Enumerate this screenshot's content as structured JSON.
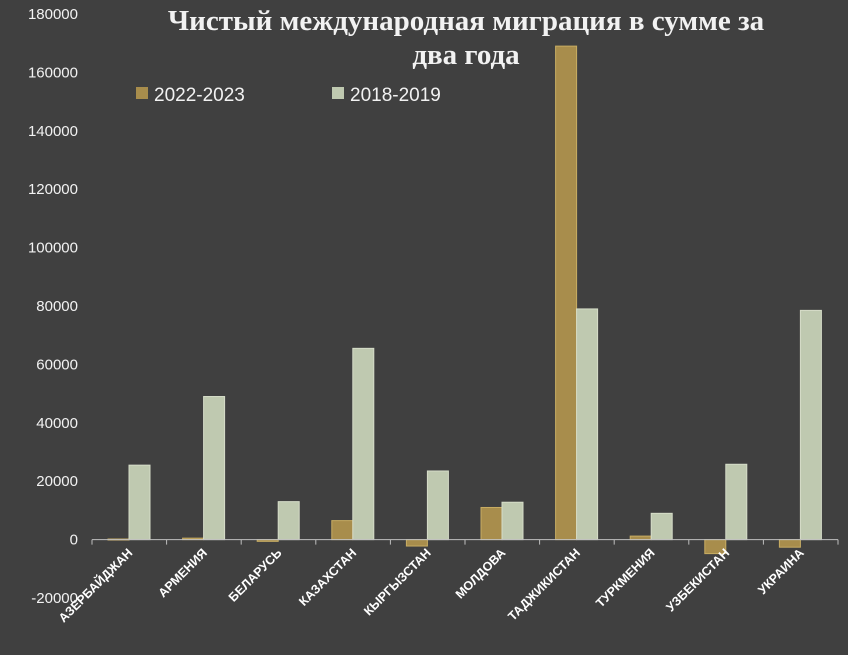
{
  "chart_data": {
    "type": "bar",
    "title_lines": [
      "Чистый международная миграция в сумме за",
      "два года"
    ],
    "categories": [
      "АЗЕРБАЙДЖАН",
      "АРМЕНИЯ",
      "БЕЛАРУСЬ",
      "КАЗАХСТАН",
      "КЫРГЫЗСТАН",
      "МОЛДОВА",
      "ТАДЖИКИСТАН",
      "ТУРКМЕНИЯ",
      "УЗБЕКИСТАН",
      "УКРАИНА"
    ],
    "series": [
      {
        "name": "2022-2023",
        "color": "#a88d4c",
        "values": [
          200,
          500,
          -600,
          6500,
          -2200,
          11000,
          169000,
          1200,
          -4800,
          -2600
        ]
      },
      {
        "name": "2018-2019",
        "color": "#bfc9b0",
        "values": [
          25500,
          49000,
          13000,
          65500,
          23500,
          12800,
          79000,
          9000,
          25800,
          78500
        ]
      }
    ],
    "yticks": [
      180000,
      160000,
      140000,
      120000,
      100000,
      80000,
      60000,
      40000,
      20000,
      0,
      -20000
    ],
    "ylim": [
      -20000,
      180000
    ],
    "legend_position": "top-left",
    "grid": false
  }
}
